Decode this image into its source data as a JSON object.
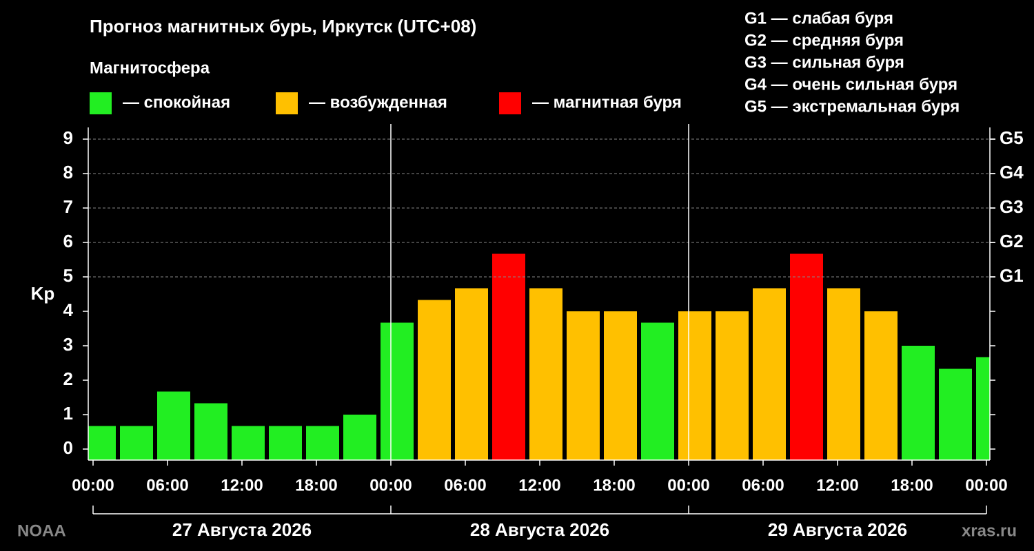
{
  "chart_data": {
    "type": "bar",
    "title": "Прогноз магнитных бурь, Иркутск (UTC+08)",
    "legend_title": "Магнитосфера",
    "legend": [
      {
        "label": "— спокойная",
        "color": "#22ee22"
      },
      {
        "label": "— возбужденная",
        "color": "#ffc000"
      },
      {
        "label": "— магнитная буря",
        "color": "#ff0000"
      }
    ],
    "storm_scale": [
      "G1 — слабая буря",
      "G2 — средняя буря",
      "G3 — сильная буря",
      "G4 — очень сильная буря",
      "G5 — экстремальная буря"
    ],
    "ylabel": "Kp",
    "x": [
      0.5,
      3.5,
      6.5,
      9.5,
      12.5,
      15.5,
      18.5,
      21.5,
      24.5,
      27.5,
      30.5,
      33.5,
      36.5,
      39.5,
      42.5,
      45.5,
      48.5,
      51.5,
      54.5,
      57.5,
      60.5,
      63.5,
      66.5,
      69.5,
      72.5
    ],
    "values": [
      0.67,
      0.67,
      1.67,
      1.33,
      0.67,
      0.67,
      0.67,
      1,
      3.67,
      4.33,
      4.67,
      5.67,
      4.67,
      4,
      4,
      3.67,
      4,
      4,
      4.67,
      5.67,
      4.67,
      4,
      3,
      2.33,
      2.67
    ],
    "colors": [
      "#22ee22",
      "#22ee22",
      "#22ee22",
      "#22ee22",
      "#22ee22",
      "#22ee22",
      "#22ee22",
      "#22ee22",
      "#22ee22",
      "#ffc000",
      "#ffc000",
      "#ff0000",
      "#ffc000",
      "#ffc000",
      "#ffc000",
      "#22ee22",
      "#ffc000",
      "#ffc000",
      "#ffc000",
      "#ff0000",
      "#ffc000",
      "#ffc000",
      "#22ee22",
      "#22ee22",
      "#22ee22"
    ],
    "xlim": [
      0,
      72
    ],
    "xticks": [
      {
        "value": 0,
        "label": "00:00"
      },
      {
        "value": 6,
        "label": "06:00"
      },
      {
        "value": 12,
        "label": "12:00"
      },
      {
        "value": 18,
        "label": "18:00"
      },
      {
        "value": 24,
        "label": "00:00"
      },
      {
        "value": 30,
        "label": "06:00"
      },
      {
        "value": 36,
        "label": "12:00"
      },
      {
        "value": 42,
        "label": "18:00"
      },
      {
        "value": 48,
        "label": "00:00"
      },
      {
        "value": 54,
        "label": "06:00"
      },
      {
        "value": 60,
        "label": "12:00"
      },
      {
        "value": 66,
        "label": "18:00"
      },
      {
        "value": 72,
        "label": "00:00"
      }
    ],
    "days": [
      "27 Августа 2026",
      "28 Августа 2026",
      "29 Августа 2026"
    ],
    "ylim": [
      -0.32,
      9.34
    ],
    "yticks": [
      0,
      1,
      2,
      3,
      4,
      5,
      6,
      7,
      8,
      9
    ],
    "y2lim": [
      -0.32,
      9.34
    ],
    "y2ticks": [
      {
        "value": 5,
        "label": "G1"
      },
      {
        "value": 6,
        "label": "G2"
      },
      {
        "value": 7,
        "label": "G3"
      },
      {
        "value": 8,
        "label": "G4"
      },
      {
        "value": 9,
        "label": "G5"
      }
    ],
    "grid": true,
    "source": "NOAA",
    "watermark": "xras.ru"
  }
}
